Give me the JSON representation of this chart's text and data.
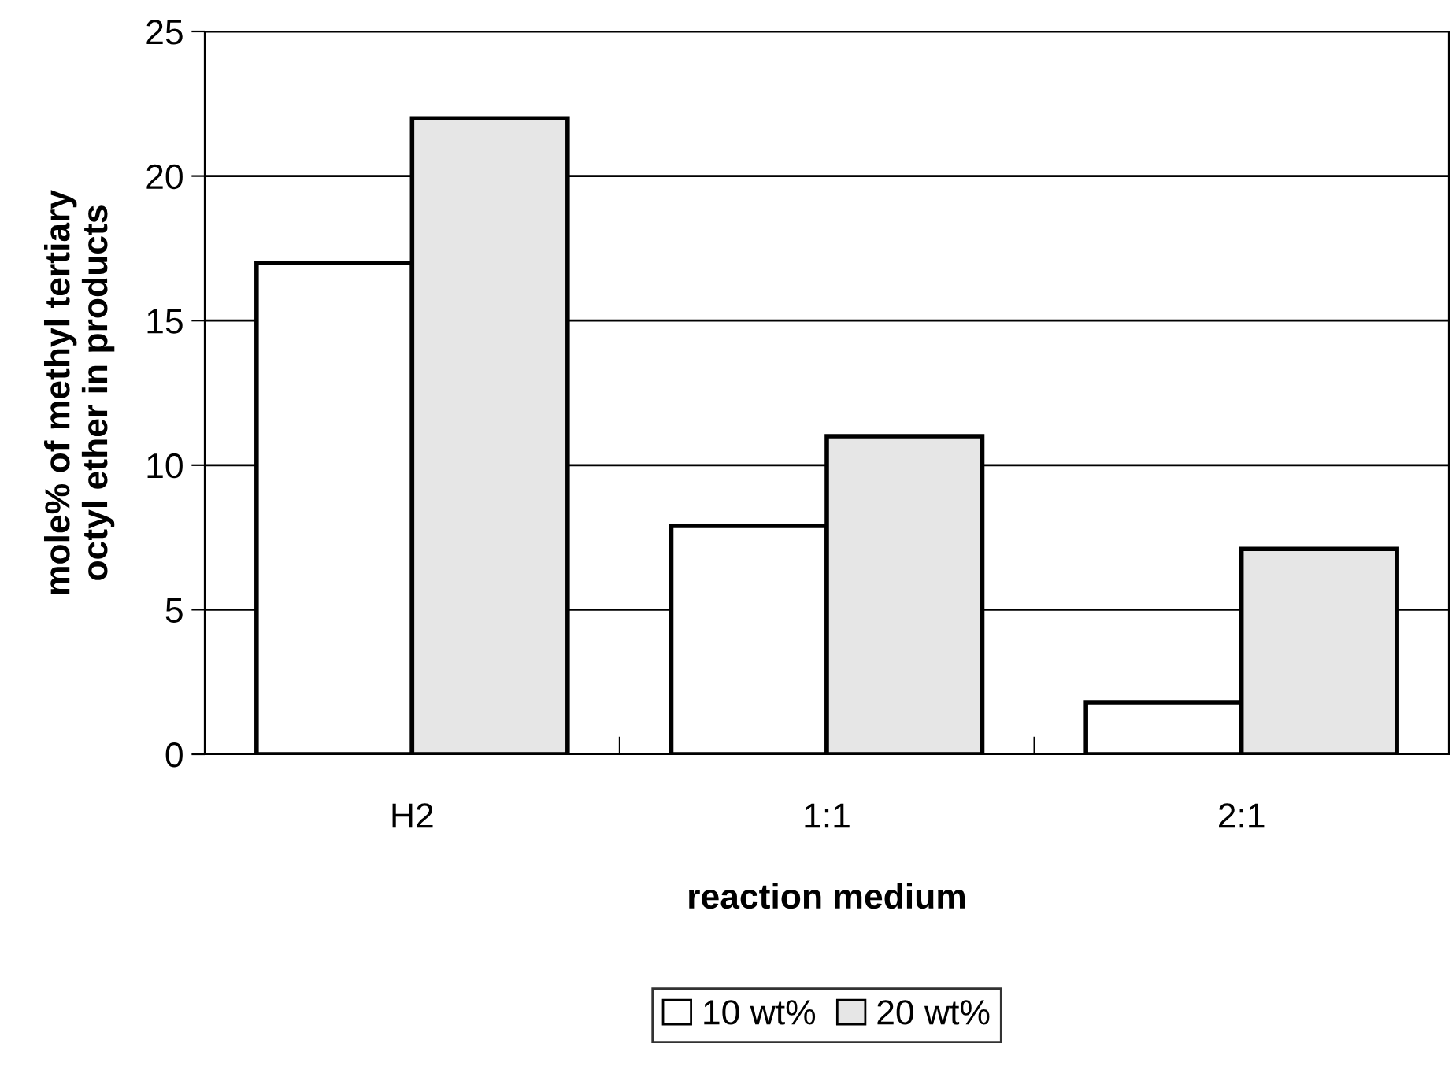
{
  "chart_data": {
    "type": "bar",
    "xlabel": "reaction medium",
    "ylabel": "mole% of methyl tertiary\noctyl ether in products",
    "categories": [
      "H2",
      "1:1",
      "2:1"
    ],
    "series": [
      {
        "name": "10 wt%",
        "color": "#ffffff",
        "values": [
          17.0,
          7.9,
          1.8
        ]
      },
      {
        "name": "20 wt%",
        "color": "#e6e6e6",
        "values": [
          22.0,
          11.0,
          7.1
        ]
      }
    ],
    "ylim": [
      0,
      25
    ],
    "yticks": [
      0,
      5,
      10,
      15,
      20,
      25
    ],
    "grid": "y",
    "legend": "bottom"
  }
}
